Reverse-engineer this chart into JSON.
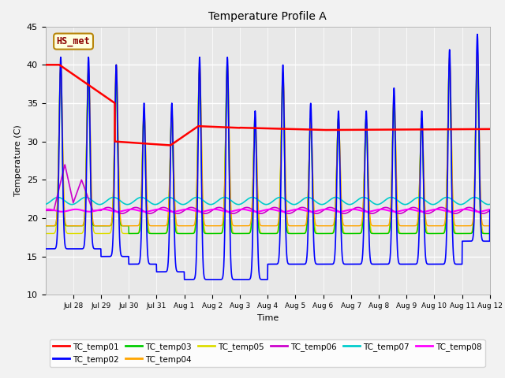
{
  "title": "Temperature Profile A",
  "xlabel": "Time",
  "ylabel": "Temperature (C)",
  "ylim": [
    10,
    45
  ],
  "xlim": [
    0,
    16
  ],
  "annotation_text": "HS_met",
  "annotation_color": "#8B0000",
  "annotation_bg": "#FFFFE0",
  "annotation_border": "#B8860B",
  "series_colors": {
    "TC_temp01": "#FF0000",
    "TC_temp02": "#0000FF",
    "TC_temp03": "#00CC00",
    "TC_temp04": "#FFA500",
    "TC_temp05": "#DDDD00",
    "TC_temp06": "#CC00CC",
    "TC_temp07": "#00CCCC",
    "TC_temp08": "#FF00FF"
  },
  "bg_color": "#F2F2F2",
  "plot_bg_color": "#E8E8E8",
  "grid_color": "#FFFFFF",
  "tick_labels": [
    "Jul 28",
    "Jul 29",
    "Jul 30",
    "Jul 31",
    "Aug 1",
    "Aug 2",
    "Aug 3",
    "Aug 4",
    "Aug 5",
    "Aug 6",
    "Aug 7",
    "Aug 8",
    "Aug 9",
    "Aug 10",
    "Aug 11",
    "Aug 12"
  ],
  "yticks": [
    10,
    15,
    20,
    25,
    30,
    35,
    40,
    45
  ]
}
